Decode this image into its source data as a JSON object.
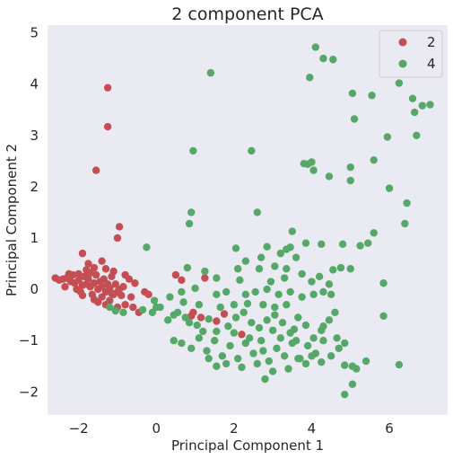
{
  "chart_data": {
    "type": "scatter",
    "title": "2 component PCA",
    "xlabel": "Principal Component 1",
    "ylabel": "Principal Component 2",
    "xlim": [
      -2.8,
      7.5
    ],
    "ylim": [
      -2.45,
      5.15
    ],
    "xticks": [
      -2,
      0,
      2,
      4,
      6
    ],
    "yticks": [
      -2,
      -1,
      0,
      1,
      2,
      3,
      4,
      5
    ],
    "grid": false,
    "legend_position": "top-right",
    "series": [
      {
        "name": "2",
        "color": "#c44e52",
        "points": [
          [
            -1.25,
            3.93
          ],
          [
            -1.25,
            3.17
          ],
          [
            -1.55,
            2.32
          ],
          [
            -0.95,
            1.22
          ],
          [
            -1.0,
            1.0
          ],
          [
            -1.9,
            0.7
          ],
          [
            -1.75,
            0.5
          ],
          [
            -1.4,
            0.55
          ],
          [
            -1.6,
            0.42
          ],
          [
            -1.3,
            0.4
          ],
          [
            -1.1,
            0.35
          ],
          [
            -0.8,
            0.28
          ],
          [
            -0.7,
            0.2
          ],
          [
            -0.55,
            0.12
          ],
          [
            -2.6,
            0.22
          ],
          [
            -2.5,
            0.18
          ],
          [
            -2.4,
            0.2
          ],
          [
            -2.3,
            0.22
          ],
          [
            -2.2,
            0.15
          ],
          [
            -2.1,
            0.12
          ],
          [
            -2.0,
            0.18
          ],
          [
            -1.9,
            0.08
          ],
          [
            -1.8,
            0.1
          ],
          [
            -1.7,
            0.05
          ],
          [
            -1.6,
            0.12
          ],
          [
            -1.5,
            0.0
          ],
          [
            -1.4,
            0.05
          ],
          [
            -1.3,
            -0.05
          ],
          [
            -1.2,
            0.02
          ],
          [
            -1.1,
            -0.1
          ],
          [
            -1.0,
            -0.05
          ],
          [
            -0.9,
            -0.12
          ],
          [
            -2.35,
            0.05
          ],
          [
            -2.25,
            0.3
          ],
          [
            -2.15,
            0.28
          ],
          [
            -2.05,
            0.0
          ],
          [
            -1.95,
            -0.05
          ],
          [
            -1.85,
            0.25
          ],
          [
            -1.75,
            0.2
          ],
          [
            -1.65,
            -0.1
          ],
          [
            -1.55,
            0.28
          ],
          [
            -1.45,
            0.15
          ],
          [
            -1.35,
            0.2
          ],
          [
            -1.25,
            0.1
          ],
          [
            -1.15,
            0.25
          ],
          [
            -1.05,
            0.1
          ],
          [
            -0.95,
            0.0
          ],
          [
            -0.85,
            0.05
          ],
          [
            -1.6,
            -0.2
          ],
          [
            -1.5,
            -0.25
          ],
          [
            -1.4,
            -0.15
          ],
          [
            -1.3,
            -0.3
          ],
          [
            -1.2,
            -0.22
          ],
          [
            -1.0,
            -0.35
          ],
          [
            -0.8,
            -0.3
          ],
          [
            -0.6,
            -0.35
          ],
          [
            -0.45,
            -0.45
          ],
          [
            -0.3,
            -0.05
          ],
          [
            -0.2,
            -0.1
          ],
          [
            -1.8,
            0.38
          ],
          [
            -2.0,
            0.3
          ],
          [
            -1.7,
            0.32
          ],
          [
            -1.9,
            -0.12
          ],
          [
            -1.15,
            -0.08
          ],
          [
            -0.65,
            -0.15
          ],
          [
            0.5,
            0.28
          ],
          [
            0.65,
            0.18
          ],
          [
            1.25,
            0.22
          ],
          [
            1.55,
            -0.62
          ],
          [
            1.75,
            -0.48
          ],
          [
            2.2,
            -0.88
          ],
          [
            0.95,
            -0.45
          ],
          [
            1.15,
            -0.55
          ],
          [
            0.9,
            -0.52
          ]
        ]
      },
      {
        "name": "4",
        "color": "#55a868",
        "points": [
          [
            4.1,
            4.72
          ],
          [
            4.3,
            4.5
          ],
          [
            4.55,
            4.48
          ],
          [
            3.95,
            4.13
          ],
          [
            1.4,
            4.22
          ],
          [
            6.25,
            4.02
          ],
          [
            5.05,
            3.82
          ],
          [
            5.55,
            3.78
          ],
          [
            6.6,
            3.72
          ],
          [
            6.85,
            3.58
          ],
          [
            7.05,
            3.6
          ],
          [
            6.65,
            3.45
          ],
          [
            5.1,
            3.32
          ],
          [
            6.7,
            3.0
          ],
          [
            5.95,
            2.97
          ],
          [
            0.95,
            2.7
          ],
          [
            2.45,
            2.7
          ],
          [
            3.8,
            2.45
          ],
          [
            4.0,
            2.48
          ],
          [
            3.9,
            2.44
          ],
          [
            4.05,
            2.32
          ],
          [
            5.0,
            2.38
          ],
          [
            5.6,
            2.52
          ],
          [
            4.45,
            2.2
          ],
          [
            5.0,
            2.12
          ],
          [
            6.0,
            1.97
          ],
          [
            6.45,
            1.68
          ],
          [
            0.9,
            1.5
          ],
          [
            2.6,
            1.5
          ],
          [
            6.4,
            1.28
          ],
          [
            0.85,
            1.28
          ],
          [
            3.5,
            1.13
          ],
          [
            5.6,
            1.1
          ],
          [
            -0.25,
            0.82
          ],
          [
            2.05,
            0.8
          ],
          [
            2.85,
            0.83
          ],
          [
            3.35,
            0.78
          ],
          [
            3.45,
            0.82
          ],
          [
            3.85,
            0.9
          ],
          [
            4.25,
            0.88
          ],
          [
            4.8,
            0.88
          ],
          [
            5.25,
            0.85
          ],
          [
            5.45,
            0.9
          ],
          [
            3.2,
            0.7
          ],
          [
            3.6,
            0.62
          ],
          [
            2.7,
            0.62
          ],
          [
            2.3,
            0.55
          ],
          [
            3.05,
            0.45
          ],
          [
            2.65,
            0.4
          ],
          [
            2.1,
            0.4
          ],
          [
            3.35,
            0.4
          ],
          [
            4.55,
            0.38
          ],
          [
            4.75,
            0.42
          ],
          [
            5.0,
            0.4
          ],
          [
            1.25,
            0.35
          ],
          [
            1.55,
            0.22
          ],
          [
            2.15,
            0.18
          ],
          [
            2.95,
            0.15
          ],
          [
            3.3,
            0.22
          ],
          [
            3.75,
            0.3
          ],
          [
            4.2,
            0.25
          ],
          [
            4.0,
            0.15
          ],
          [
            4.45,
            0.1
          ],
          [
            5.85,
            0.12
          ],
          [
            0.8,
            0.42
          ],
          [
            0.65,
            -0.05
          ],
          [
            1.0,
            0.02
          ],
          [
            1.55,
            -0.1
          ],
          [
            1.8,
            -0.05
          ],
          [
            2.3,
            -0.1
          ],
          [
            2.55,
            -0.05
          ],
          [
            2.85,
            0.0
          ],
          [
            3.15,
            -0.1
          ],
          [
            3.45,
            -0.05
          ],
          [
            3.75,
            -0.15
          ],
          [
            4.05,
            -0.1
          ],
          [
            4.3,
            -0.05
          ],
          [
            4.5,
            -0.1
          ],
          [
            4.6,
            -0.45
          ],
          [
            0.1,
            -0.35
          ],
          [
            0.3,
            -0.6
          ],
          [
            0.55,
            -0.45
          ],
          [
            0.75,
            -0.55
          ],
          [
            1.05,
            -0.7
          ],
          [
            1.35,
            -0.58
          ],
          [
            1.55,
            -0.82
          ],
          [
            1.85,
            -0.72
          ],
          [
            2.05,
            -0.55
          ],
          [
            2.25,
            -0.45
          ],
          [
            2.45,
            -0.65
          ],
          [
            2.65,
            -0.75
          ],
          [
            2.85,
            -0.6
          ],
          [
            3.05,
            -0.5
          ],
          [
            3.25,
            -0.65
          ],
          [
            3.45,
            -0.85
          ],
          [
            3.65,
            -0.55
          ],
          [
            3.85,
            -0.7
          ],
          [
            4.05,
            -0.95
          ],
          [
            4.25,
            -0.8
          ],
          [
            4.45,
            -0.6
          ],
          [
            4.65,
            -0.95
          ],
          [
            4.85,
            -1.05
          ],
          [
            5.85,
            -0.52
          ],
          [
            0.45,
            -1.0
          ],
          [
            0.65,
            -1.05
          ],
          [
            0.9,
            -1.15
          ],
          [
            1.1,
            -0.95
          ],
          [
            1.3,
            -1.2
          ],
          [
            1.5,
            -1.0
          ],
          [
            1.7,
            -1.3
          ],
          [
            1.9,
            -1.1
          ],
          [
            2.1,
            -1.35
          ],
          [
            2.3,
            -1.05
          ],
          [
            2.5,
            -1.25
          ],
          [
            2.7,
            -1.0
          ],
          [
            2.9,
            -1.4
          ],
          [
            3.1,
            -1.15
          ],
          [
            3.3,
            -1.3
          ],
          [
            3.5,
            -1.05
          ],
          [
            3.7,
            -1.35
          ],
          [
            3.9,
            -1.1
          ],
          [
            4.1,
            -1.25
          ],
          [
            4.3,
            -1.0
          ],
          [
            4.5,
            -1.3
          ],
          [
            4.7,
            -1.15
          ],
          [
            1.35,
            -1.35
          ],
          [
            1.55,
            -1.5
          ],
          [
            1.8,
            -1.45
          ],
          [
            2.2,
            -1.52
          ],
          [
            2.6,
            -1.45
          ],
          [
            3.0,
            -1.6
          ],
          [
            3.4,
            -1.55
          ],
          [
            3.85,
            -1.45
          ],
          [
            4.25,
            -1.42
          ],
          [
            4.85,
            -1.48
          ],
          [
            5.05,
            -1.5
          ],
          [
            5.15,
            -1.55
          ],
          [
            5.4,
            -1.4
          ],
          [
            6.25,
            -1.47
          ],
          [
            4.85,
            -2.05
          ],
          [
            5.05,
            -1.85
          ],
          [
            2.8,
            -1.75
          ],
          [
            3.65,
            -1.35
          ],
          [
            2.0,
            -0.85
          ],
          [
            2.4,
            -0.95
          ],
          [
            2.75,
            -1.2
          ],
          [
            3.2,
            -0.95
          ],
          [
            3.6,
            -1.0
          ],
          [
            4.0,
            -1.3
          ],
          [
            1.65,
            -0.35
          ],
          [
            2.0,
            -0.3
          ],
          [
            2.35,
            -0.28
          ],
          [
            2.75,
            -0.3
          ],
          [
            3.05,
            -0.35
          ],
          [
            3.35,
            -0.3
          ],
          [
            0.7,
            -0.25
          ],
          [
            1.1,
            -0.3
          ],
          [
            0.35,
            -0.15
          ],
          [
            0.0,
            -0.35
          ],
          [
            -0.1,
            -0.45
          ],
          [
            -0.35,
            -0.4
          ],
          [
            -0.05,
            -0.22
          ],
          [
            0.45,
            -0.5
          ],
          [
            0.85,
            -0.65
          ],
          [
            1.2,
            -0.82
          ],
          [
            3.0,
            -0.8
          ],
          [
            3.55,
            -0.78
          ],
          [
            4.3,
            -0.72
          ],
          [
            -1.2,
            -0.35
          ],
          [
            -1.05,
            -0.42
          ],
          [
            -0.85,
            -0.45
          ]
        ]
      }
    ]
  }
}
